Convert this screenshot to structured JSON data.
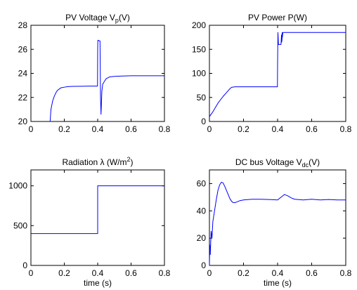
{
  "chart_data": [
    {
      "type": "line",
      "title": "PV Voltage V",
      "title_sub": "p",
      "title_tail": "(V)",
      "xlabel": "",
      "ylabel": "",
      "xlim": [
        0,
        0.8
      ],
      "ylim": [
        20,
        28
      ],
      "xticks": [
        0,
        0.2,
        0.4,
        0.6,
        0.8
      ],
      "yticks": [
        20,
        22,
        24,
        26,
        28
      ],
      "xtick_labels": [
        "0",
        "0.2",
        "0.4",
        "0.6",
        "0.8"
      ],
      "ytick_labels": [
        "20",
        "22",
        "24",
        "26",
        "28"
      ],
      "grid": false,
      "color": "#0000ff",
      "x": [
        0.115,
        0.12,
        0.13,
        0.14,
        0.15,
        0.16,
        0.18,
        0.2,
        0.22,
        0.25,
        0.3,
        0.35,
        0.399,
        0.4,
        0.401,
        0.405,
        0.41,
        0.414,
        0.415,
        0.417,
        0.42,
        0.425,
        0.43,
        0.45,
        0.47,
        0.5,
        0.55,
        0.6,
        0.7,
        0.8
      ],
      "y": [
        20.0,
        21.0,
        21.7,
        22.1,
        22.4,
        22.6,
        22.8,
        22.85,
        22.9,
        22.92,
        22.93,
        22.94,
        22.94,
        26.0,
        26.75,
        26.75,
        26.7,
        26.7,
        25.0,
        22.0,
        20.6,
        22.5,
        23.1,
        23.55,
        23.7,
        23.75,
        23.78,
        23.8,
        23.8,
        23.8
      ]
    },
    {
      "type": "line",
      "title": "PV Power P(W)",
      "title_sub": "",
      "title_tail": "",
      "xlabel": "",
      "ylabel": "",
      "xlim": [
        0,
        0.8
      ],
      "ylim": [
        0,
        200
      ],
      "xticks": [
        0,
        0.2,
        0.4,
        0.6,
        0.8
      ],
      "yticks": [
        0,
        50,
        100,
        150,
        200
      ],
      "xtick_labels": [
        "0",
        "0.2",
        "0.4",
        "0.6",
        "0.8"
      ],
      "ytick_labels": [
        "0",
        "50",
        "100",
        "150",
        "200"
      ],
      "grid": false,
      "color": "#0000ff",
      "x": [
        0,
        0.02,
        0.05,
        0.08,
        0.1,
        0.12,
        0.13,
        0.15,
        0.2,
        0.3,
        0.395,
        0.399,
        0.4,
        0.402,
        0.405,
        0.41,
        0.42,
        0.423,
        0.424,
        0.426,
        0.427,
        0.428,
        0.43,
        0.432,
        0.5,
        0.6,
        0.7,
        0.8
      ],
      "y": [
        10,
        20,
        38,
        52,
        60,
        68,
        71,
        72,
        72,
        72,
        72,
        72,
        120,
        185,
        160,
        160,
        160,
        180,
        165,
        170,
        185,
        175,
        182,
        185,
        185,
        185,
        185,
        185
      ]
    },
    {
      "type": "line",
      "title": "Radiation λ  (W/m",
      "title_sub": "",
      "title_sup": "2",
      "title_tail": ")",
      "xlabel": "time (s)",
      "ylabel": "",
      "xlim": [
        0,
        0.8
      ],
      "ylim": [
        0,
        1200
      ],
      "xticks": [
        0,
        0.2,
        0.4,
        0.6,
        0.8
      ],
      "yticks": [
        0,
        500,
        1000
      ],
      "xtick_labels": [
        "0",
        "0.2",
        "0.4",
        "0.6",
        "0.8"
      ],
      "ytick_labels": [
        "0",
        "500",
        "1000"
      ],
      "grid": false,
      "color": "#0000ff",
      "x": [
        0,
        0.4,
        0.4,
        0.8
      ],
      "y": [
        400,
        400,
        1000,
        1000
      ]
    },
    {
      "type": "line",
      "title": "DC bus Voltage V",
      "title_sub": "dc",
      "title_tail": "(V)",
      "xlabel": "time (s)",
      "ylabel": "",
      "xlim": [
        0,
        0.8
      ],
      "ylim": [
        0,
        70
      ],
      "xticks": [
        0,
        0.2,
        0.4,
        0.6,
        0.8
      ],
      "yticks": [
        0,
        20,
        40,
        60
      ],
      "xtick_labels": [
        "0",
        "0.2",
        "0.4",
        "0.6",
        "0.8"
      ],
      "ytick_labels": [
        "0",
        "20",
        "40",
        "60"
      ],
      "grid": false,
      "color": "#0000ff",
      "x": [
        0,
        0.002,
        0.005,
        0.01,
        0.015,
        0.02,
        0.03,
        0.04,
        0.05,
        0.06,
        0.07,
        0.08,
        0.09,
        0.1,
        0.11,
        0.12,
        0.13,
        0.14,
        0.15,
        0.16,
        0.18,
        0.2,
        0.25,
        0.3,
        0.35,
        0.4,
        0.42,
        0.44,
        0.46,
        0.48,
        0.5,
        0.55,
        0.6,
        0.65,
        0.7,
        0.75,
        0.8
      ],
      "y": [
        0,
        15,
        8,
        25,
        20,
        32,
        40,
        48,
        55,
        59,
        61,
        60.5,
        58,
        55,
        52,
        49,
        47,
        46,
        46,
        46.5,
        47.5,
        48,
        48.5,
        48.5,
        48.3,
        48,
        50,
        52,
        51,
        49.5,
        48.5,
        48,
        48.5,
        48,
        48.3,
        48,
        48
      ]
    }
  ]
}
